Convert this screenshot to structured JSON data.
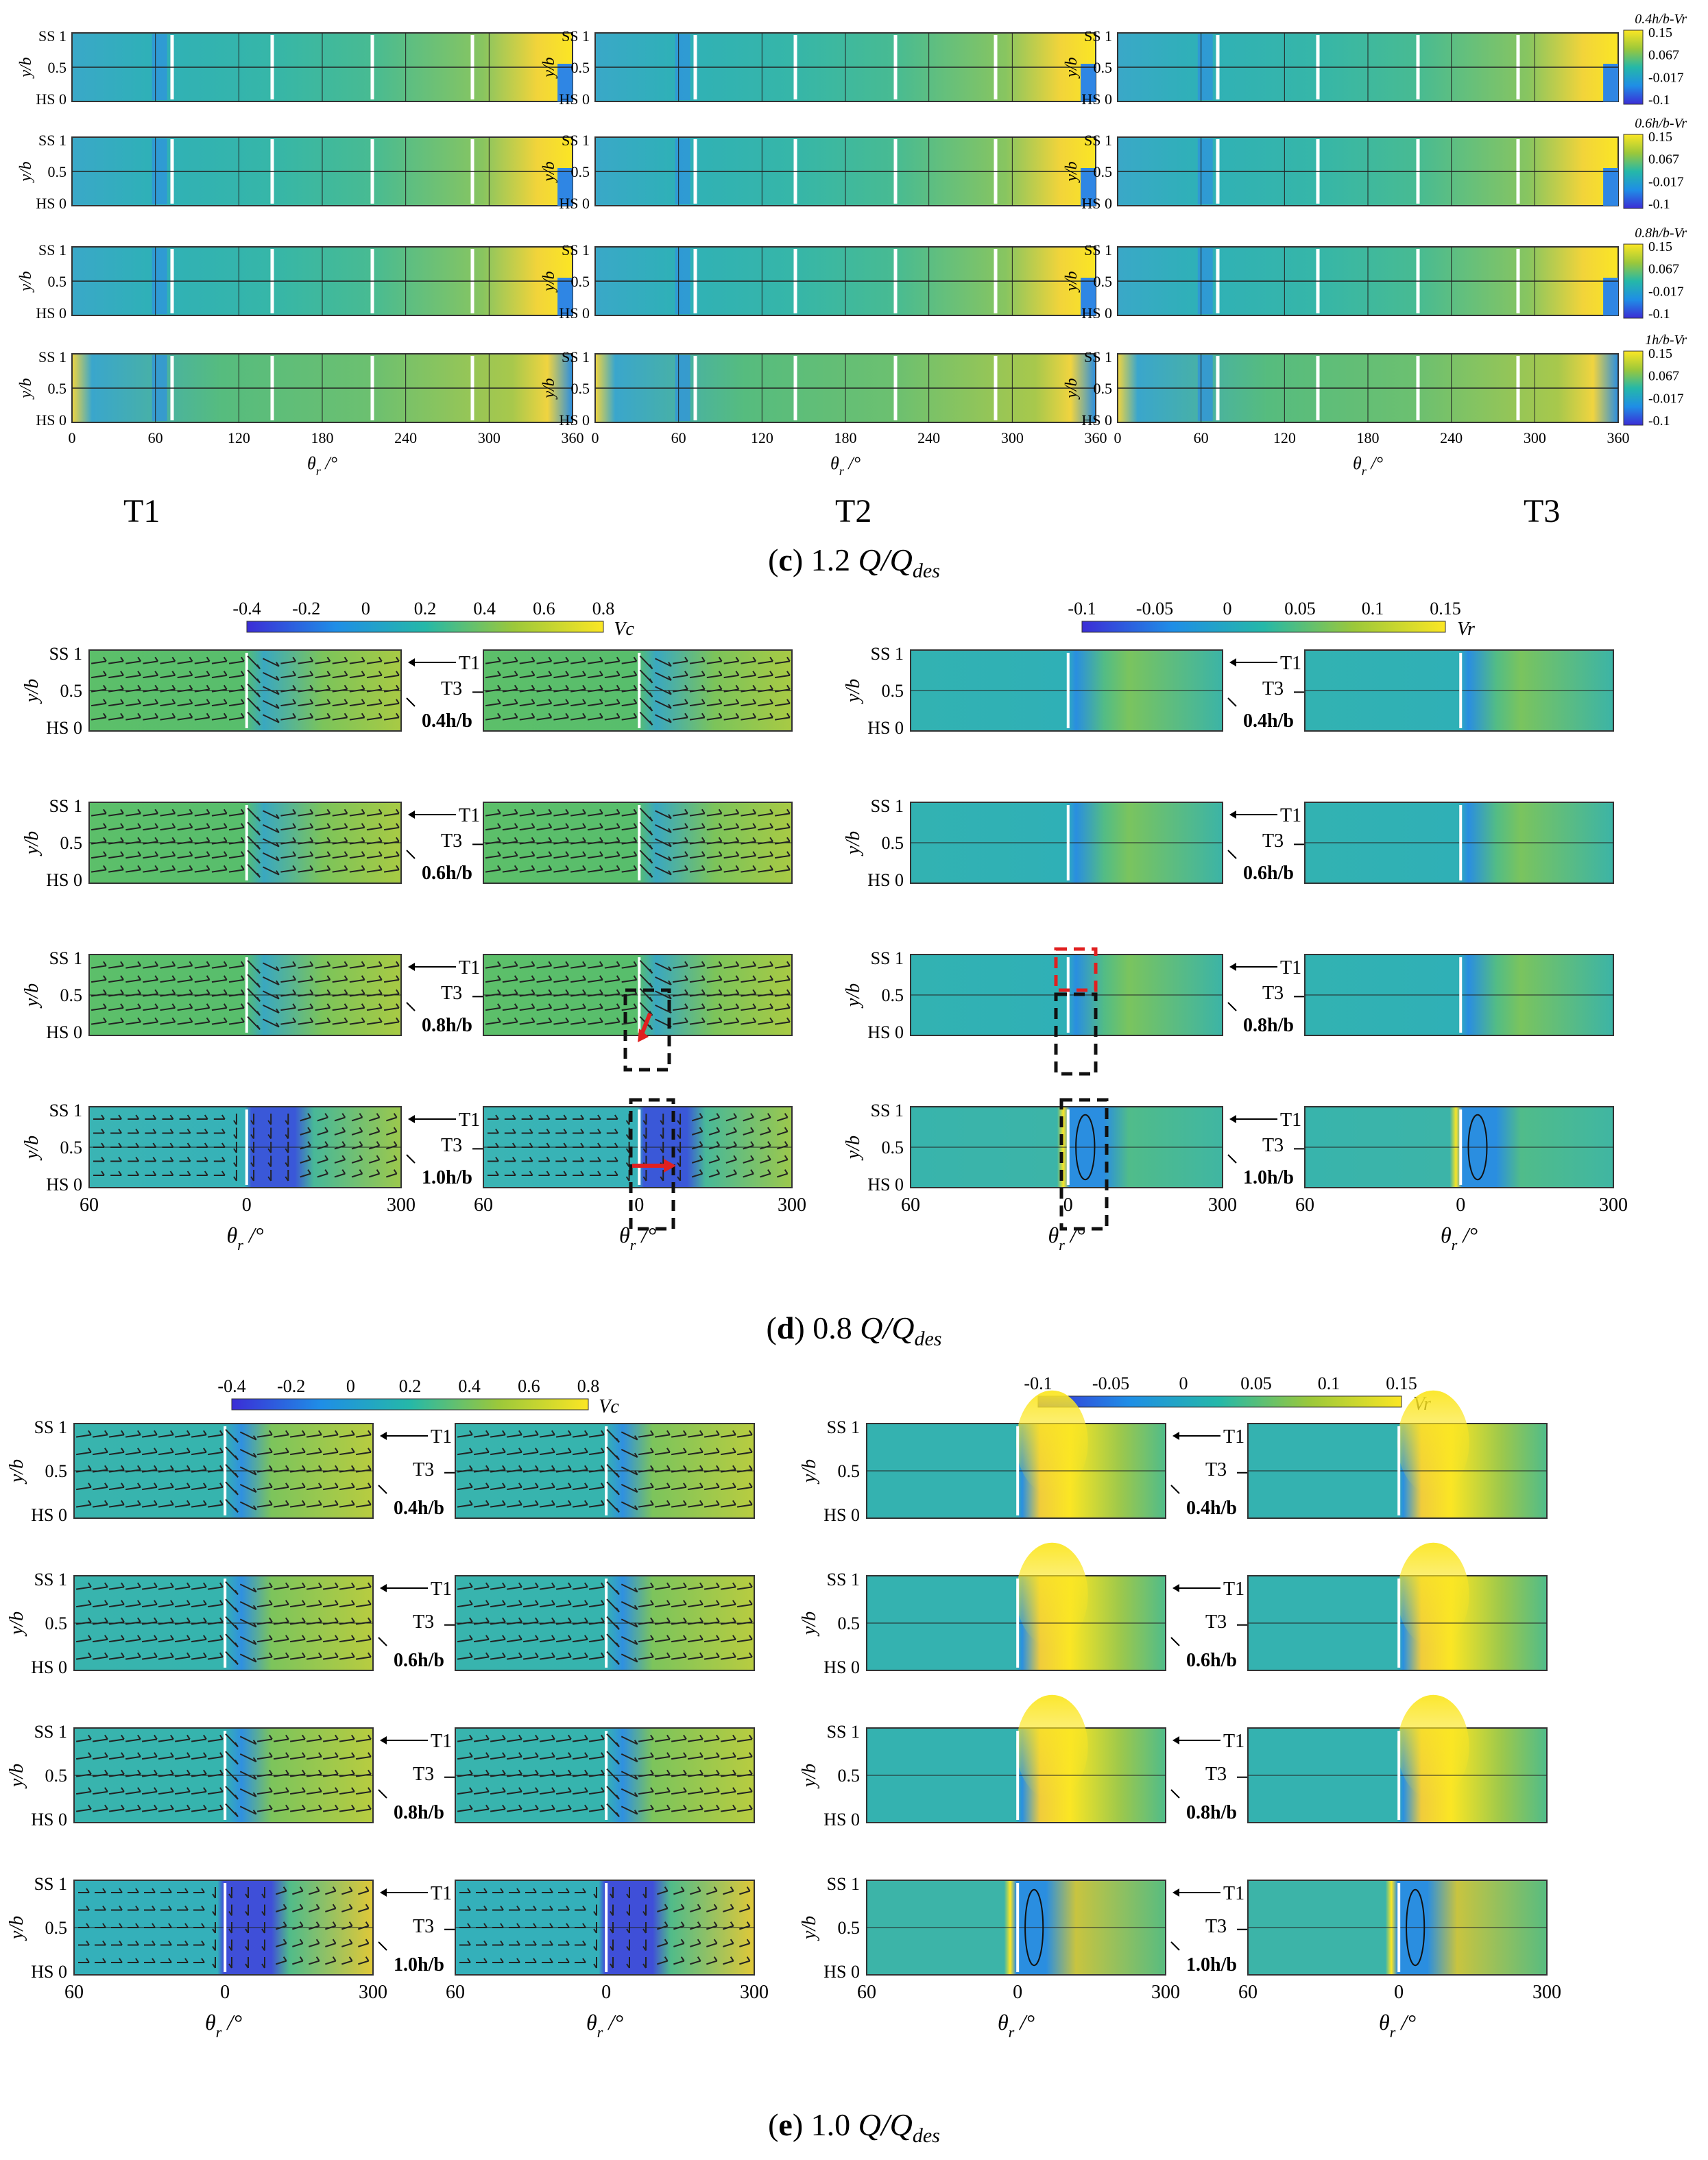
{
  "figure": {
    "section_c": {
      "caption_letter": "c",
      "caption_value": "1.2",
      "column_labels": [
        "T1",
        "T2",
        "T3"
      ],
      "row_labels": [
        "0.4h/b-Vr",
        "0.6h/b-Vr",
        "0.8h/b-Vr",
        "1h/b-Vr"
      ],
      "colorbar_ticks": [
        "0.15",
        "0.067",
        "-0.017",
        "-0.1"
      ],
      "x_ticks": [
        "0",
        "60",
        "120",
        "180",
        "240",
        "300",
        "360"
      ],
      "y_ticks": [
        "SS 1",
        "0.5",
        "HS 0"
      ],
      "y_label": "y/b",
      "x_label": "θr/°"
    },
    "section_d": {
      "caption_letter": "d",
      "caption_value": "0.8",
      "vc_colorbar_ticks": [
        "-0.4",
        "-0.2",
        "0",
        "0.2",
        "0.4",
        "0.6",
        "0.8"
      ],
      "vc_colorbar_label": "Vc",
      "vr_colorbar_ticks": [
        "-0.1",
        "-0.05",
        "0",
        "0.05",
        "0.1",
        "0.15"
      ],
      "vr_colorbar_label": "Vr",
      "row_labels": [
        "0.4h/b",
        "0.6h/b",
        "0.8h/b",
        "1.0h/b"
      ],
      "arrow_labels": [
        "T1",
        "T3"
      ],
      "x_ticks": [
        "60",
        "0",
        "300"
      ],
      "y_ticks": [
        "SS 1",
        "0.5",
        "HS 0"
      ],
      "y_label": "y/b",
      "x_label": "θr/°"
    },
    "section_e": {
      "caption_letter": "e",
      "caption_value": "1.0",
      "vc_colorbar_ticks": [
        "-0.4",
        "-0.2",
        "0",
        "0.2",
        "0.4",
        "0.6",
        "0.8"
      ],
      "vc_colorbar_label": "Vc",
      "vr_colorbar_ticks": [
        "-0.1",
        "-0.05",
        "0",
        "0.05",
        "0.1",
        "0.15"
      ],
      "vr_colorbar_label": "Vr",
      "row_labels": [
        "0.4h/b",
        "0.6h/b",
        "0.8h/b",
        "1.0h/b"
      ],
      "arrow_labels": [
        "T1",
        "T3"
      ],
      "x_ticks": [
        "60",
        "0",
        "300"
      ],
      "y_ticks": [
        "SS 1",
        "0.5",
        "HS 0"
      ],
      "y_label": "y/b",
      "x_label": "θr/°"
    },
    "caption_flow_text": "Q/Q",
    "caption_subscript": "des",
    "colors": {
      "background_field": "#30b5a0",
      "field_green": "#5cc06a",
      "field_blue": "#2a8fe0",
      "field_yellow": "#f5e52e",
      "field_dark_blue": "#3a3ad8",
      "highlight_red": "#e02020"
    }
  }
}
